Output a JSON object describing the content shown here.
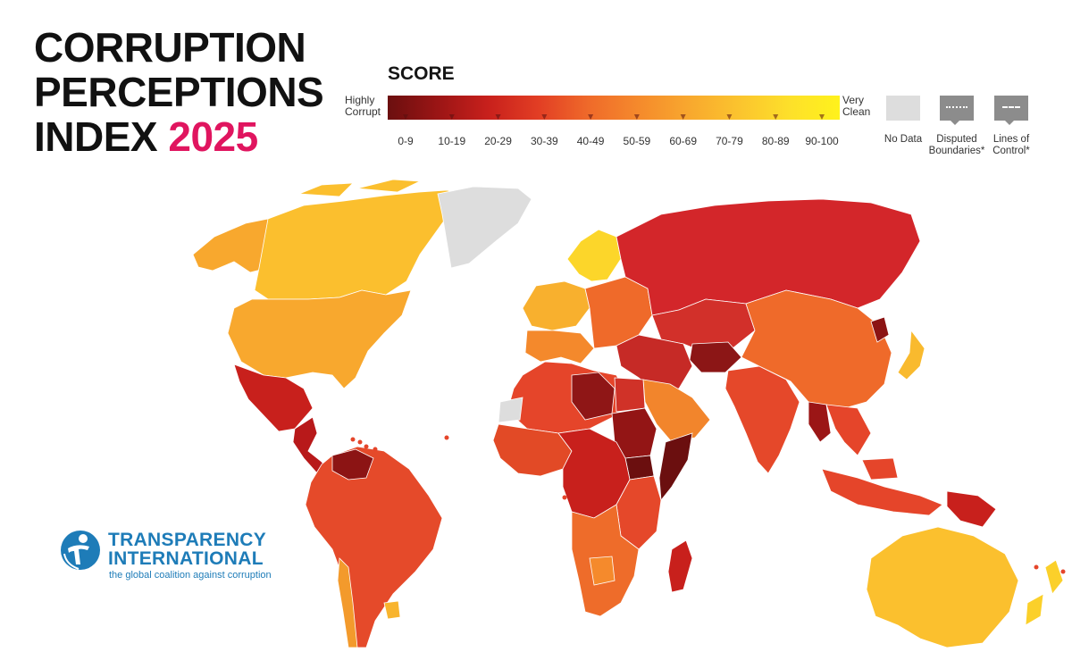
{
  "header": {
    "title_line1": "CORRUPTION",
    "title_line2": "PERCEPTIONS",
    "title_line3_prefix": "INDEX ",
    "title_year": "2025",
    "year_color": "#e0155f"
  },
  "legend": {
    "title": "SCORE",
    "low_label_line1": "Highly",
    "low_label_line2": "Corrupt",
    "high_label_line1": "Very",
    "high_label_line2": "Clean",
    "bins": [
      {
        "label": "0-9",
        "min": 0,
        "max": 9,
        "color": "#6b0f0f"
      },
      {
        "label": "10-19",
        "min": 10,
        "max": 19,
        "color": "#9b1515"
      },
      {
        "label": "20-29",
        "min": 20,
        "max": 29,
        "color": "#c8201c"
      },
      {
        "label": "30-39",
        "min": 30,
        "max": 39,
        "color": "#e23e24"
      },
      {
        "label": "40-49",
        "min": 40,
        "max": 49,
        "color": "#ef6a2a"
      },
      {
        "label": "50-59",
        "min": 50,
        "max": 59,
        "color": "#f58a2c"
      },
      {
        "label": "60-69",
        "min": 60,
        "max": 69,
        "color": "#f8a82e"
      },
      {
        "label": "70-79",
        "min": 70,
        "max": 79,
        "color": "#fbc42e"
      },
      {
        "label": "80-89",
        "min": 80,
        "max": 89,
        "color": "#fde02a"
      },
      {
        "label": "90-100",
        "min": 90,
        "max": 100,
        "color": "#fff21c"
      }
    ],
    "no_data": {
      "label": "No Data",
      "color": "#dddddd"
    },
    "disputed": {
      "label_line1": "Disputed",
      "label_line2": "Boundaries*",
      "color": "#8c8c8c"
    },
    "lines_of_control": {
      "label_line1": "Lines of",
      "label_line2": "Control*",
      "color": "#8c8c8c"
    }
  },
  "map": {
    "regions": [
      {
        "id": "canada",
        "name": "Canada",
        "score_bin": "70-79",
        "color": "#fbbf2e"
      },
      {
        "id": "usa",
        "name": "United States",
        "score_bin": "60-69",
        "color": "#f8a82e"
      },
      {
        "id": "alaska",
        "name": "Alaska",
        "score_bin": "60-69",
        "color": "#f8a82e"
      },
      {
        "id": "greenland",
        "name": "Greenland",
        "score_bin": "No Data",
        "color": "#dddddd"
      },
      {
        "id": "mexico",
        "name": "Mexico",
        "score_bin": "20-29",
        "color": "#c8201c"
      },
      {
        "id": "central-america",
        "name": "Central America",
        "score_bin": "20-29",
        "color": "#b8191a"
      },
      {
        "id": "south-america",
        "name": "South America",
        "score_bin": "30-39",
        "color": "#e54a2a"
      },
      {
        "id": "venezuela",
        "name": "Venezuela",
        "score_bin": "10-19",
        "color": "#8c1414"
      },
      {
        "id": "chile",
        "name": "Chile",
        "score_bin": "60-69",
        "color": "#f39a2c"
      },
      {
        "id": "uruguay",
        "name": "Uruguay",
        "score_bin": "70-79",
        "color": "#f8b42e"
      },
      {
        "id": "scandinavia",
        "name": "Scandinavia",
        "score_bin": "80-89",
        "color": "#fcd62a"
      },
      {
        "id": "western-europe",
        "name": "Western Europe",
        "score_bin": "70-79",
        "color": "#f8b02e"
      },
      {
        "id": "southern-europe",
        "name": "Southern Europe",
        "score_bin": "50-59",
        "color": "#f4892c"
      },
      {
        "id": "eastern-europe",
        "name": "Eastern Europe",
        "score_bin": "40-49",
        "color": "#ef6a2a"
      },
      {
        "id": "russia",
        "name": "Russia",
        "score_bin": "20-29",
        "color": "#d3262a"
      },
      {
        "id": "central-asia",
        "name": "Central Asia",
        "score_bin": "20-29",
        "color": "#d2302a"
      },
      {
        "id": "middle-east",
        "name": "Middle East",
        "score_bin": "20-29",
        "color": "#c62a26"
      },
      {
        "id": "saudi-arabia",
        "name": "Saudi Arabia",
        "score_bin": "50-59",
        "color": "#f2852c"
      },
      {
        "id": "afghanistan",
        "name": "Afghanistan",
        "score_bin": "10-19",
        "color": "#8c1616"
      },
      {
        "id": "india",
        "name": "India",
        "score_bin": "30-39",
        "color": "#e5482a"
      },
      {
        "id": "china",
        "name": "China",
        "score_bin": "40-49",
        "color": "#ef6a2a"
      },
      {
        "id": "southeast-asia",
        "name": "Southeast Asia",
        "score_bin": "30-39",
        "color": "#e5452a"
      },
      {
        "id": "myanmar",
        "name": "Myanmar",
        "score_bin": "10-19",
        "color": "#9b1616"
      },
      {
        "id": "north-korea",
        "name": "North Korea",
        "score_bin": "10-19",
        "color": "#8c1414"
      },
      {
        "id": "japan",
        "name": "Japan",
        "score_bin": "70-79",
        "color": "#f9ba2e"
      },
      {
        "id": "indonesia",
        "name": "Indonesia",
        "score_bin": "30-39",
        "color": "#e5452a"
      },
      {
        "id": "png",
        "name": "Papua New Guinea",
        "score_bin": "20-29",
        "color": "#c8201c"
      },
      {
        "id": "australia",
        "name": "Australia",
        "score_bin": "70-79",
        "color": "#fbc02e"
      },
      {
        "id": "new-zealand",
        "name": "New Zealand",
        "score_bin": "80-89",
        "color": "#fbd02a"
      },
      {
        "id": "north-africa",
        "name": "North Africa",
        "score_bin": "30-39",
        "color": "#e5452a"
      },
      {
        "id": "libya",
        "name": "Libya",
        "score_bin": "10-19",
        "color": "#8f1616"
      },
      {
        "id": "egypt",
        "name": "Egypt",
        "score_bin": "20-29",
        "color": "#d03228"
      },
      {
        "id": "sudan",
        "name": "Sudan",
        "score_bin": "10-19",
        "color": "#931515"
      },
      {
        "id": "south-sudan",
        "name": "South Sudan",
        "score_bin": "0-9",
        "color": "#6b0f0f"
      },
      {
        "id": "somalia",
        "name": "Somalia",
        "score_bin": "0-9",
        "color": "#6b0f0f"
      },
      {
        "id": "west-africa",
        "name": "West Africa",
        "score_bin": "30-39",
        "color": "#e24a26"
      },
      {
        "id": "central-africa",
        "name": "Central Africa",
        "score_bin": "20-29",
        "color": "#c8201c"
      },
      {
        "id": "east-africa",
        "name": "East Africa",
        "score_bin": "30-39",
        "color": "#e5482a"
      },
      {
        "id": "southern-africa",
        "name": "Southern Africa",
        "score_bin": "40-49",
        "color": "#ee6c2a"
      },
      {
        "id": "botswana",
        "name": "Botswana",
        "score_bin": "50-59",
        "color": "#f58a2c"
      },
      {
        "id": "madagascar",
        "name": "Madagascar",
        "score_bin": "20-29",
        "color": "#c8201c"
      },
      {
        "id": "western-sahara",
        "name": "Western Sahara",
        "score_bin": "No Data",
        "color": "#dddddd"
      }
    ]
  },
  "logo": {
    "name_line1": "TRANSPARENCY",
    "name_line2": "INTERNATIONAL",
    "tagline": "the global coalition against corruption",
    "color": "#1e7cb8"
  }
}
